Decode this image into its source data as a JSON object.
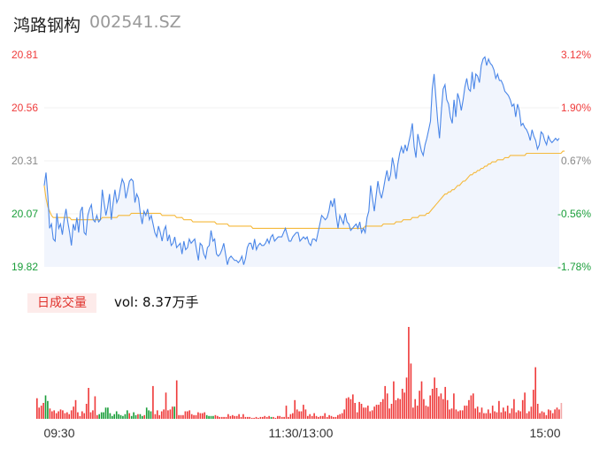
{
  "header": {
    "name": "鸿路钢构",
    "code": "002541.SZ"
  },
  "volume_panel": {
    "tab_label": "日成交量",
    "vol_text": "vol: 8.37万手"
  },
  "colors": {
    "price": "#4a86e8",
    "avg": "#f5b93b",
    "up": "#ef3b3b",
    "down": "#1a9e3a",
    "neutral": "#888888"
  },
  "chart_data": [
    {
      "type": "line",
      "y_labels_left": [
        "20.81",
        "20.56",
        "20.31",
        "20.07",
        "19.82"
      ],
      "y_labels_right": [
        "3.12%",
        "1.90%",
        "0.67%",
        "-0.56%",
        "-1.78%"
      ],
      "x_labels": [
        "09:30",
        "11:30/13:00",
        "15:00"
      ],
      "ylim": [
        19.82,
        20.81
      ],
      "series": [
        {
          "values": [
            20.2,
            20.26,
            20.15,
            20.0,
            20.02,
            19.95,
            19.94,
            20.07,
            20.0,
            20.02,
            19.97,
            20.04,
            20.09,
            20.03,
            19.98,
            19.92,
            20.02,
            19.99,
            20.05,
            19.98,
            20.08,
            20.1,
            19.98,
            19.97,
            20.06,
            20.09,
            20.11,
            20.04,
            20.03,
            20.06,
            20.03,
            20.04,
            20.18,
            20.12,
            20.06,
            20.1,
            20.16,
            20.04,
            20.12,
            20.18,
            20.12,
            20.14,
            20.19,
            20.23,
            20.21,
            20.14,
            20.18,
            20.22,
            20.23,
            20.22,
            20.12,
            20.16,
            20.14,
            20.07,
            20.02,
            20.08,
            20.06,
            20.09,
            20.04,
            20.06,
            20.02,
            19.98,
            19.96,
            20.01,
            19.98,
            19.94,
            19.99,
            20.01,
            19.94,
            19.97,
            19.92,
            19.93,
            19.96,
            19.91,
            19.92,
            19.93,
            19.88,
            19.94,
            19.9,
            19.91,
            19.95,
            19.93,
            19.94,
            19.95,
            19.9,
            19.85,
            19.93,
            19.92,
            19.88,
            19.86,
            19.91,
            19.92,
            19.99,
            19.94,
            19.95,
            19.88,
            19.87,
            19.88,
            19.9,
            19.93,
            19.88,
            19.83,
            19.86,
            19.87,
            19.86,
            19.85,
            19.85,
            19.84,
            19.85,
            19.87,
            19.83,
            19.86,
            19.91,
            19.93,
            19.93,
            19.9,
            19.95,
            19.9,
            19.92,
            19.93,
            19.92,
            19.92,
            19.93,
            19.95,
            19.93,
            19.96,
            19.97,
            19.94,
            19.95,
            19.96,
            19.96,
            19.96,
            19.98,
            20.0,
            19.97,
            19.94,
            19.94,
            19.96,
            19.97,
            19.98,
            19.98,
            19.94,
            19.95,
            19.96,
            19.95,
            19.96,
            19.93,
            19.92,
            19.95,
            19.95,
            19.94,
            19.98,
            20.02,
            20.06,
            20.05,
            20.04,
            20.05,
            20.08,
            20.13,
            20.1,
            20.14,
            20.06,
            20.0,
            20.06,
            20.04,
            20.02,
            20.07,
            20.03,
            20.02,
            19.99,
            20.0,
            20.01,
            20.02,
            20.0,
            20.03,
            19.98,
            20.0,
            19.98,
            20.05,
            20.08,
            20.2,
            20.14,
            20.08,
            20.15,
            20.22,
            20.17,
            20.14,
            20.18,
            20.23,
            20.27,
            20.22,
            20.25,
            20.33,
            20.29,
            20.23,
            20.3,
            20.35,
            20.38,
            20.35,
            20.39,
            20.36,
            20.4,
            20.44,
            20.49,
            20.38,
            20.33,
            20.44,
            20.4,
            20.36,
            20.34,
            20.39,
            20.42,
            20.46,
            20.5,
            20.65,
            20.72,
            20.61,
            20.5,
            20.42,
            20.55,
            20.65,
            20.67,
            20.6,
            20.58,
            20.52,
            20.49,
            20.6,
            20.52,
            20.63,
            20.6,
            20.55,
            20.6,
            20.66,
            20.7,
            20.65,
            20.64,
            20.73,
            20.65,
            20.72,
            20.71,
            20.68,
            20.76,
            20.79,
            20.8,
            20.76,
            20.79,
            20.77,
            20.76,
            20.74,
            20.7,
            20.72,
            20.69,
            20.69,
            20.67,
            20.64,
            20.63,
            20.62,
            20.6,
            20.57,
            20.58,
            20.52,
            20.58,
            20.55,
            20.48,
            20.49,
            20.47,
            20.46,
            20.44,
            20.41,
            20.46,
            20.43,
            20.41,
            20.37,
            20.39,
            20.45,
            20.44,
            20.41,
            20.39,
            20.43,
            20.41,
            20.4,
            20.41,
            20.42,
            20.41,
            20.42
          ]
        },
        {
          "values": [
            20.2,
            20.14,
            20.1,
            20.08,
            20.06,
            20.05,
            20.05,
            20.05,
            20.05,
            20.05,
            20.05,
            20.05,
            20.05,
            20.05,
            20.05,
            20.04,
            20.04,
            20.04,
            20.04,
            20.04,
            20.04,
            20.04,
            20.04,
            20.04,
            20.04,
            20.04,
            20.04,
            20.04,
            20.04,
            20.04,
            20.04,
            20.04,
            20.05,
            20.05,
            20.05,
            20.05,
            20.05,
            20.05,
            20.05,
            20.05,
            20.05,
            20.06,
            20.06,
            20.06,
            20.06,
            20.06,
            20.06,
            20.06,
            20.07,
            20.07,
            20.07,
            20.07,
            20.07,
            20.07,
            20.07,
            20.07,
            20.07,
            20.07,
            20.07,
            20.07,
            20.07,
            20.07,
            20.07,
            20.07,
            20.07,
            20.06,
            20.06,
            20.06,
            20.06,
            20.06,
            20.06,
            20.06,
            20.06,
            20.05,
            20.05,
            20.05,
            20.05,
            20.04,
            20.04,
            20.04,
            20.04,
            20.04,
            20.03,
            20.03,
            20.03,
            20.03,
            20.03,
            20.03,
            20.03,
            20.03,
            20.03,
            20.03,
            20.03,
            20.03,
            20.03,
            20.02,
            20.02,
            20.02,
            20.02,
            20.02,
            20.02,
            20.02,
            20.01,
            20.01,
            20.01,
            20.01,
            20.01,
            20.01,
            20.01,
            20.01,
            20.01,
            20.01,
            20.01,
            20.01,
            20.01,
            20.0,
            20.0,
            20.0,
            20.0,
            20.0,
            20.0,
            20.0,
            20.0,
            20.0,
            20.0,
            20.0,
            20.0,
            20.0,
            20.0,
            20.0,
            20.0,
            20.0,
            20.0,
            20.0,
            20.0,
            20.0,
            20.0,
            20.0,
            20.0,
            20.0,
            20.0,
            20.0,
            20.0,
            20.0,
            20.0,
            20.0,
            20.0,
            20.0,
            20.0,
            20.0,
            20.0,
            20.0,
            20.0,
            20.0,
            20.0,
            20.0,
            20.0,
            20.0,
            20.0,
            20.0,
            20.0,
            20.0,
            20.0,
            20.0,
            20.0,
            20.0,
            20.0,
            20.0,
            20.0,
            20.0,
            20.0,
            20.0,
            20.0,
            20.0,
            20.0,
            20.0,
            20.0,
            20.01,
            20.01,
            20.01,
            20.01,
            20.01,
            20.01,
            20.01,
            20.01,
            20.01,
            20.01,
            20.02,
            20.02,
            20.02,
            20.02,
            20.02,
            20.02,
            20.02,
            20.03,
            20.03,
            20.03,
            20.03,
            20.04,
            20.04,
            20.04,
            20.04,
            20.04,
            20.05,
            20.05,
            20.05,
            20.05,
            20.06,
            20.06,
            20.06,
            20.06,
            20.07,
            20.07,
            20.08,
            20.09,
            20.1,
            20.11,
            20.12,
            20.13,
            20.14,
            20.15,
            20.16,
            20.16,
            20.17,
            20.17,
            20.18,
            20.18,
            20.19,
            20.2,
            20.2,
            20.21,
            20.22,
            20.22,
            20.23,
            20.24,
            20.25,
            20.25,
            20.26,
            20.26,
            20.27,
            20.27,
            20.28,
            20.28,
            20.29,
            20.29,
            20.3,
            20.3,
            20.31,
            20.31,
            20.31,
            20.32,
            20.32,
            20.32,
            20.32,
            20.33,
            20.33,
            20.33,
            20.34,
            20.34,
            20.34,
            20.34,
            20.34,
            20.34,
            20.34,
            20.34,
            20.34,
            20.35,
            20.35,
            20.35,
            20.35,
            20.35,
            20.35,
            20.35,
            20.35,
            20.35,
            20.35,
            20.35,
            20.35,
            20.35,
            20.35,
            20.35,
            20.35,
            20.35,
            20.35,
            20.35,
            20.35,
            20.36,
            20.36
          ]
        }
      ]
    },
    {
      "type": "bar",
      "series": [
        {
          "values": [
            22,
            12,
            14,
            17,
            25,
            19,
            11,
            8,
            9,
            6,
            8,
            10,
            9,
            6,
            7,
            5,
            9,
            13,
            20,
            7,
            3,
            8,
            6,
            16,
            33,
            7,
            9,
            24,
            4,
            5,
            7,
            7,
            12,
            12,
            6,
            3,
            5,
            8,
            5,
            4,
            3,
            5,
            9,
            6,
            3,
            7,
            4,
            5,
            5,
            3,
            4,
            12,
            9,
            8,
            35,
            5,
            9,
            4,
            8,
            10,
            28,
            9,
            10,
            13,
            13,
            41,
            4,
            4,
            4,
            8,
            8,
            9,
            5,
            4,
            4,
            7,
            6,
            6,
            7,
            4,
            3,
            3,
            3,
            4,
            3,
            2,
            2,
            2,
            2,
            5,
            3,
            4,
            3,
            3,
            5,
            2,
            5,
            2,
            2,
            2,
            1,
            1,
            2,
            1,
            2,
            2,
            3,
            2,
            3,
            2,
            2,
            1,
            3,
            3,
            2,
            2,
            14,
            2,
            5,
            6,
            20,
            10,
            8,
            8,
            15,
            10,
            3,
            5,
            3,
            6,
            3,
            2,
            3,
            3,
            6,
            2,
            4,
            3,
            2,
            2,
            4,
            5,
            6,
            10,
            22,
            23,
            21,
            26,
            17,
            7,
            18,
            16,
            12,
            12,
            14,
            8,
            9,
            13,
            15,
            15,
            18,
            21,
            35,
            27,
            11,
            16,
            40,
            20,
            22,
            21,
            32,
            28,
            44,
            98,
            59,
            12,
            21,
            14,
            30,
            40,
            21,
            14,
            13,
            25,
            32,
            44,
            33,
            24,
            27,
            21,
            34,
            20,
            10,
            11,
            27,
            10,
            8,
            9,
            9,
            14,
            14,
            20,
            25,
            27,
            11,
            13,
            7,
            12,
            6,
            6,
            10,
            6,
            14,
            8,
            7,
            19,
            7,
            12,
            8,
            14,
            6,
            11,
            21,
            7,
            9,
            8,
            20,
            28,
            6,
            8,
            13,
            31,
            55,
            16,
            6,
            8,
            7,
            4,
            10,
            9,
            6,
            10,
            12,
            10,
            17
          ]
        },
        {
          "values": [
            1,
            1,
            1,
            1,
            0,
            0,
            1,
            1,
            1,
            1,
            1,
            1,
            1,
            1,
            1,
            1,
            1,
            1,
            1,
            1,
            1,
            1,
            1,
            1,
            1,
            1,
            1,
            1,
            1,
            0,
            0,
            0,
            0,
            0,
            0,
            0,
            0,
            0,
            0,
            0,
            0,
            0,
            0,
            1,
            0,
            0,
            0,
            1,
            0,
            0,
            1,
            0,
            0,
            0,
            1,
            1,
            1,
            1,
            1,
            1,
            1,
            1,
            1,
            1,
            0,
            1,
            1,
            1,
            1,
            1,
            1,
            1,
            1,
            1,
            1,
            1,
            1,
            1,
            1,
            0,
            0,
            0,
            0,
            1,
            1,
            1,
            1,
            1,
            1,
            1,
            1,
            1,
            1,
            1,
            1,
            1,
            1,
            1,
            1,
            1,
            1,
            1,
            1,
            1,
            1,
            1,
            1,
            1,
            1,
            0,
            1,
            1,
            1,
            1,
            1,
            1,
            1,
            1,
            1,
            1,
            1,
            1,
            1,
            1,
            1,
            1,
            1,
            1,
            1,
            1,
            1,
            1,
            1,
            1,
            1,
            1,
            1,
            1,
            1,
            1,
            1,
            1,
            1,
            1,
            1,
            1,
            1,
            1,
            1,
            1,
            1,
            1,
            1,
            1,
            1,
            1,
            1,
            1,
            1,
            1,
            1,
            1,
            1,
            1,
            1,
            1,
            1,
            1,
            1,
            1,
            1,
            1,
            1,
            1,
            1,
            1,
            1,
            1,
            1,
            1,
            1,
            1,
            1,
            1,
            1,
            1,
            1,
            1,
            1,
            1,
            1,
            1,
            1,
            1,
            1,
            1,
            1,
            1,
            1,
            1,
            1,
            1,
            1,
            1,
            1,
            1,
            1,
            1,
            1,
            1,
            1,
            1,
            1,
            1,
            1,
            1,
            1,
            1,
            1,
            1,
            1,
            1,
            1,
            1,
            1,
            1,
            1,
            1,
            1,
            1,
            1,
            1,
            1,
            1,
            1,
            1,
            1,
            1,
            1,
            1,
            1,
            1,
            1,
            1,
            1,
            1,
            1,
            1,
            1,
            1
          ]
        }
      ]
    }
  ]
}
